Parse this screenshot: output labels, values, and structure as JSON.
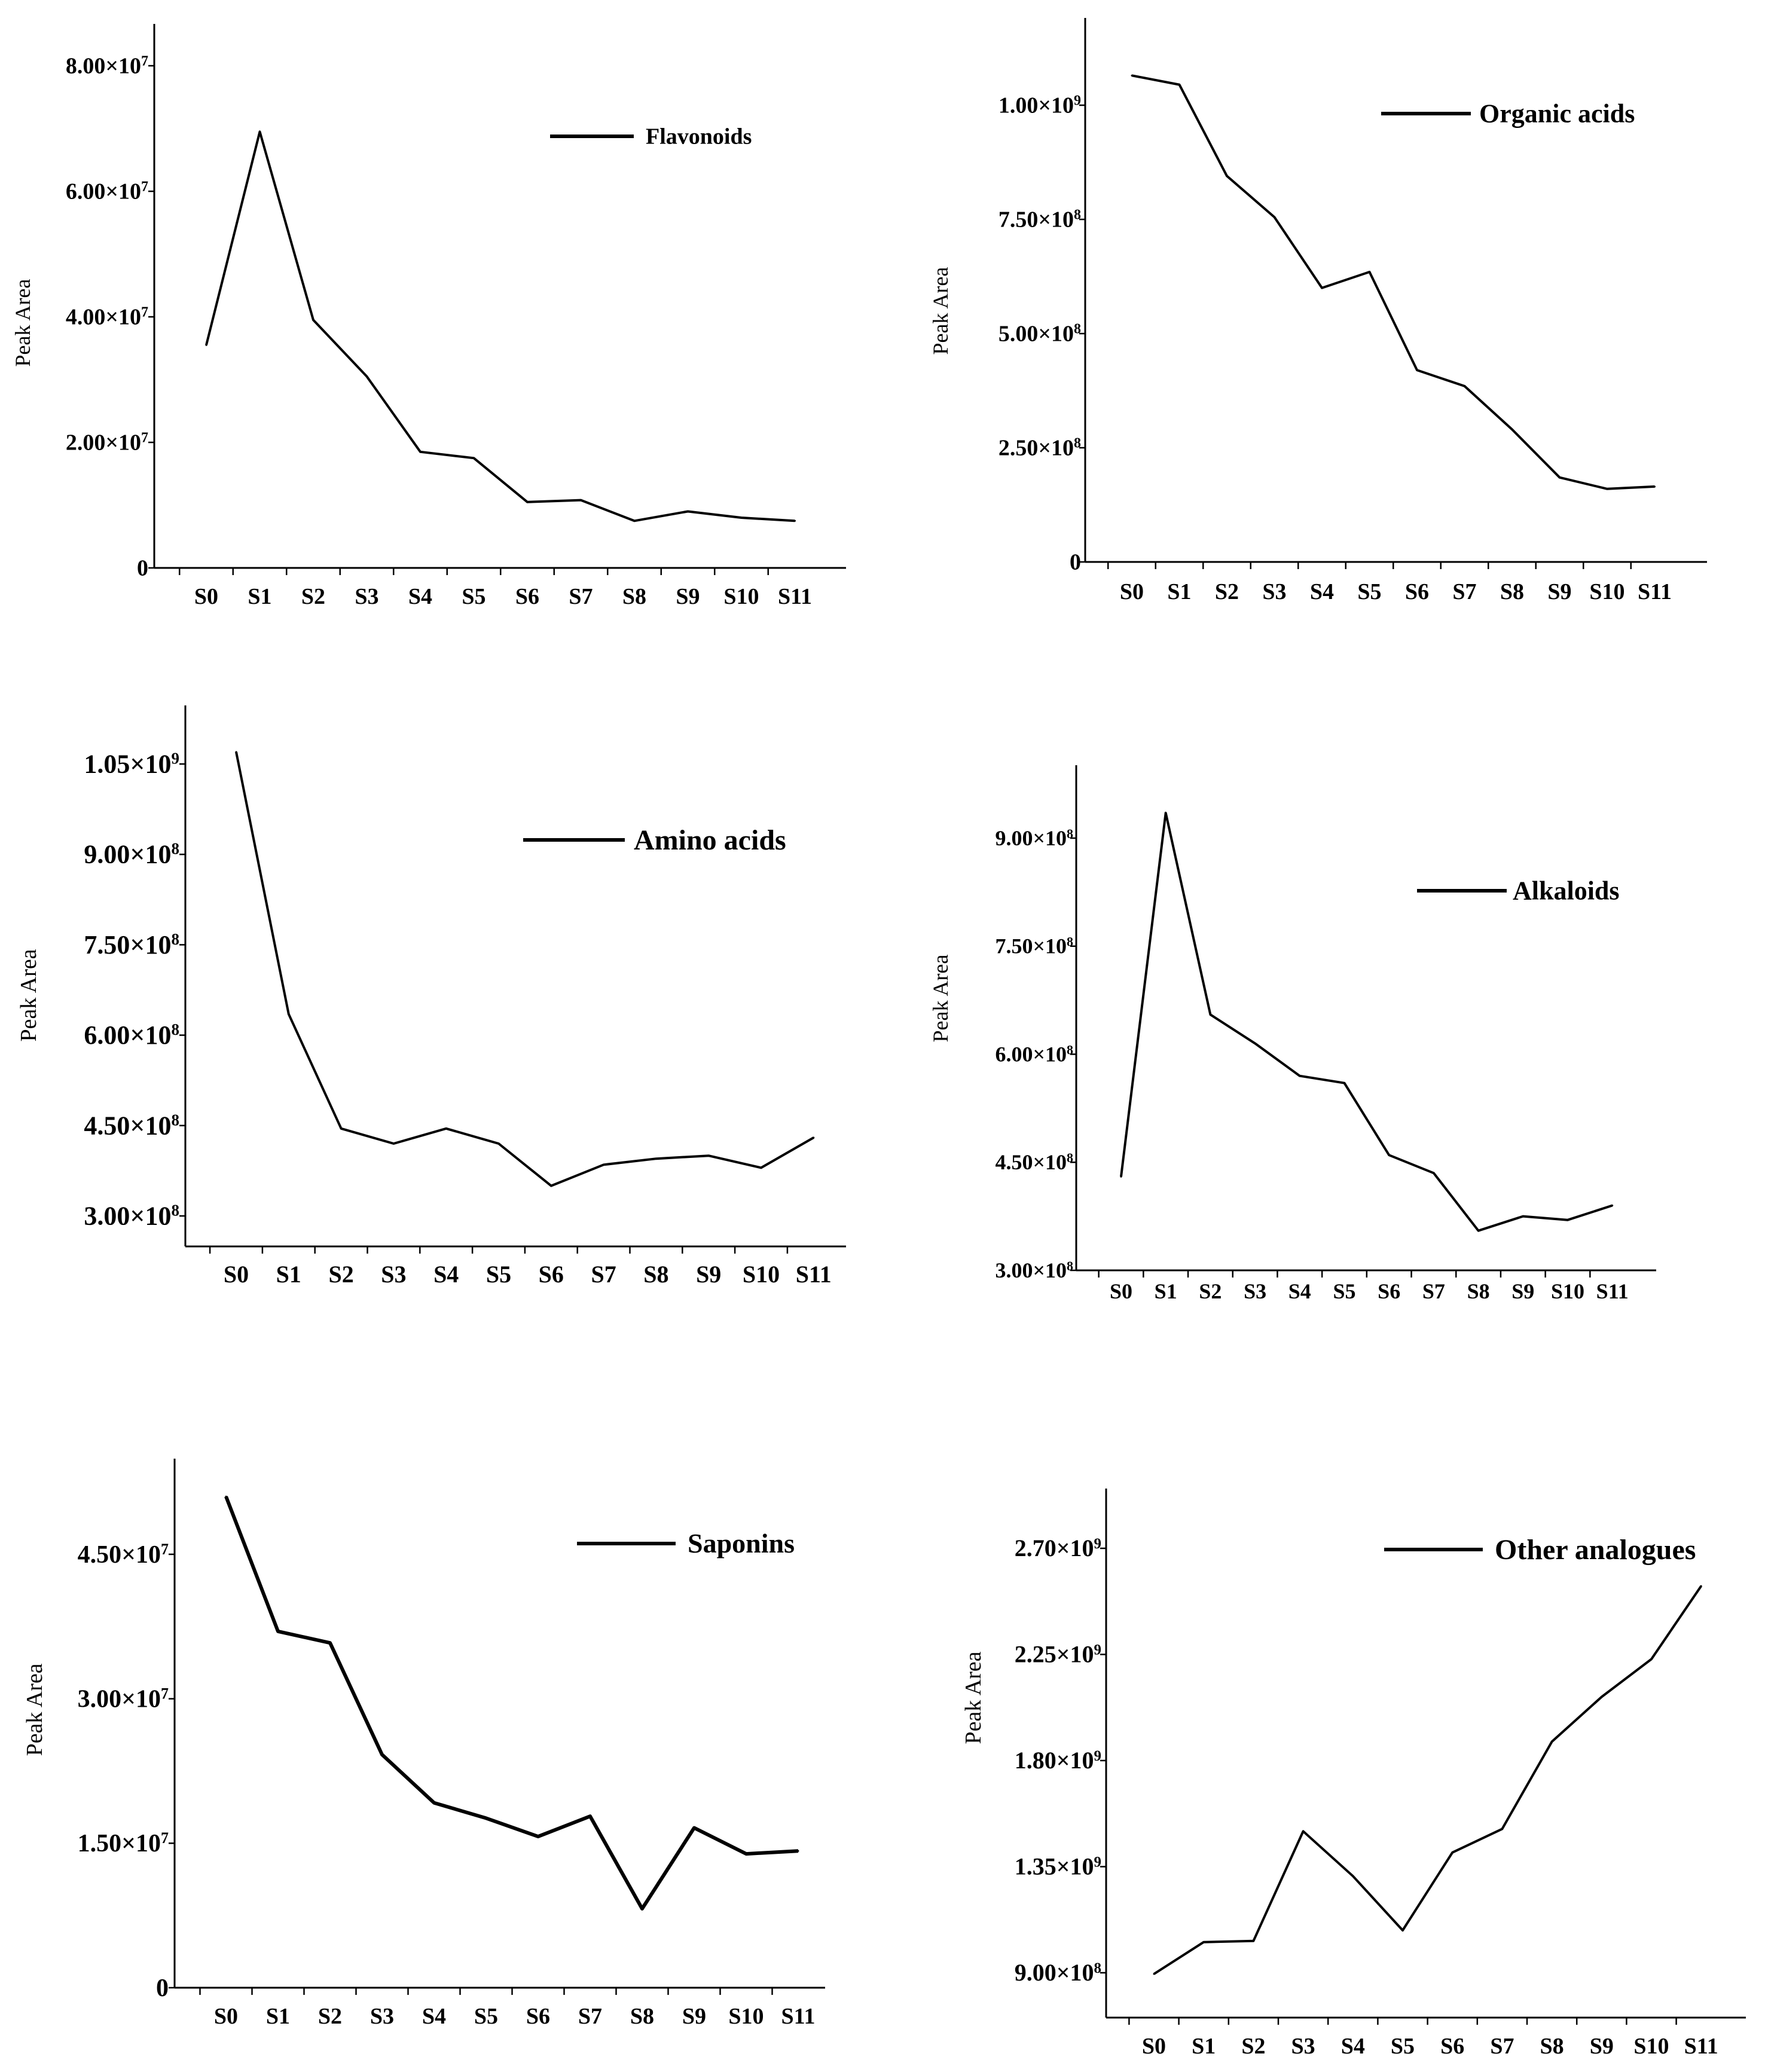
{
  "chart_data": [
    {
      "type": "line",
      "ylabel": "Peak Area",
      "legend": "Flavonoids",
      "legend_position": "top-right",
      "categories": [
        "S0",
        "S1",
        "S2",
        "S3",
        "S4",
        "S5",
        "S6",
        "S7",
        "S8",
        "S9",
        "S10",
        "S11"
      ],
      "ylim": [
        0,
        80000000
      ],
      "yticks": [
        {
          "value": 0,
          "mant": "0",
          "exp": ""
        },
        {
          "value": 20000000,
          "mant": "2.00×10",
          "exp": "7"
        },
        {
          "value": 40000000,
          "mant": "4.00×10",
          "exp": "7"
        },
        {
          "value": 60000000,
          "mant": "6.00×10",
          "exp": "7"
        },
        {
          "value": 80000000,
          "mant": "8.00×10",
          "exp": "7"
        }
      ],
      "series": [
        {
          "values": [
            35500000,
            69500000,
            39500000,
            30500000,
            18500000,
            17500000,
            10500000,
            10800000,
            7500000,
            9000000,
            8000000,
            7500000
          ]
        }
      ],
      "color": "#000000"
    },
    {
      "type": "line",
      "ylabel": "Peak Area",
      "legend": "Organic acids",
      "legend_position": "top-right",
      "categories": [
        "S0",
        "S1",
        "S2",
        "S3",
        "S4",
        "S5",
        "S6",
        "S7",
        "S8",
        "S9",
        "S10",
        "S11"
      ],
      "ylim": [
        0,
        1000000000
      ],
      "yticks": [
        {
          "value": 0,
          "mant": "0",
          "exp": ""
        },
        {
          "value": 250000000,
          "mant": "2.50×10",
          "exp": "8"
        },
        {
          "value": 500000000,
          "mant": "5.00×10",
          "exp": "8"
        },
        {
          "value": 750000000,
          "mant": "7.50×10",
          "exp": "8"
        },
        {
          "value": 1000000000,
          "mant": "1.00×10",
          "exp": "9"
        }
      ],
      "series": [
        {
          "values": [
            1065000000,
            1045000000,
            845000000,
            755000000,
            600000000,
            635000000,
            420000000,
            385000000,
            290000000,
            185000000,
            160000000,
            165000000
          ]
        }
      ],
      "color": "#000000"
    },
    {
      "type": "line",
      "ylabel": "Peak Area",
      "legend": "Amino acids",
      "legend_position": "top-right",
      "categories": [
        "S0",
        "S1",
        "S2",
        "S3",
        "S4",
        "S5",
        "S6",
        "S7",
        "S8",
        "S9",
        "S10",
        "S11"
      ],
      "ylim": [
        250000000,
        1100000000
      ],
      "yticks": [
        {
          "value": 300000000,
          "mant": "3.00×10",
          "exp": "8"
        },
        {
          "value": 450000000,
          "mant": "4.50×10",
          "exp": "8"
        },
        {
          "value": 600000000,
          "mant": "6.00×10",
          "exp": "8"
        },
        {
          "value": 750000000,
          "mant": "7.50×10",
          "exp": "8"
        },
        {
          "value": 900000000,
          "mant": "9.00×10",
          "exp": "8"
        },
        {
          "value": 1050000000,
          "mant": "1.05×10",
          "exp": "9"
        }
      ],
      "series": [
        {
          "values": [
            1070000000,
            635000000,
            445000000,
            420000000,
            445000000,
            420000000,
            350000000,
            385000000,
            395000000,
            400000000,
            380000000,
            430000000
          ]
        }
      ],
      "color": "#000000"
    },
    {
      "type": "line",
      "ylabel": "Peak Area",
      "legend": "Alkaloids",
      "legend_position": "top-right",
      "categories": [
        "S0",
        "S1",
        "S2",
        "S3",
        "S4",
        "S5",
        "S6",
        "S7",
        "S8",
        "S9",
        "S10",
        "S11"
      ],
      "ylim": [
        300000000,
        1000000000
      ],
      "yticks": [
        {
          "value": 300000000,
          "mant": "3.00×10",
          "exp": "8"
        },
        {
          "value": 450000000,
          "mant": "4.50×10",
          "exp": "8"
        },
        {
          "value": 600000000,
          "mant": "6.00×10",
          "exp": "8"
        },
        {
          "value": 750000000,
          "mant": "7.50×10",
          "exp": "8"
        },
        {
          "value": 900000000,
          "mant": "9.00×10",
          "exp": "8"
        }
      ],
      "series": [
        {
          "values": [
            430000000,
            935000000,
            655000000,
            615000000,
            570000000,
            560000000,
            460000000,
            435000000,
            355000000,
            375000000,
            370000000,
            390000000
          ]
        }
      ],
      "color": "#000000"
    },
    {
      "type": "line",
      "ylabel": "Peak Area",
      "legend": "Saponins",
      "legend_position": "top-right",
      "categories": [
        "S0",
        "S1",
        "S2",
        "S3",
        "S4",
        "S5",
        "S6",
        "S7",
        "S8",
        "S9",
        "S10",
        "S11"
      ],
      "ylim": [
        0,
        54000000
      ],
      "yticks": [
        {
          "value": 0,
          "mant": "0",
          "exp": ""
        },
        {
          "value": 15000000,
          "mant": "1.50×10",
          "exp": "7"
        },
        {
          "value": 30000000,
          "mant": "3.00×10",
          "exp": "7"
        },
        {
          "value": 45000000,
          "mant": "4.50×10",
          "exp": "7"
        }
      ],
      "series": [
        {
          "values": [
            51000000,
            37000000,
            35800000,
            24200000,
            19200000,
            17600000,
            15700000,
            17800000,
            8200000,
            16600000,
            13900000,
            14200000
          ]
        }
      ],
      "color": "#000000"
    },
    {
      "type": "line",
      "ylabel": "Peak Area",
      "legend": "Other analogues",
      "legend_position": "top-right",
      "categories": [
        "S0",
        "S1",
        "S2",
        "S3",
        "S4",
        "S5",
        "S6",
        "S7",
        "S8",
        "S9",
        "S10",
        "S11"
      ],
      "ylim": [
        700000000,
        2950000000
      ],
      "yticks": [
        {
          "value": 900000000,
          "mant": "9.00×10",
          "exp": "8"
        },
        {
          "value": 1350000000,
          "mant": "1.35×10",
          "exp": "9"
        },
        {
          "value": 1800000000,
          "mant": "1.80×10",
          "exp": "9"
        },
        {
          "value": 2250000000,
          "mant": "2.25×10",
          "exp": "9"
        },
        {
          "value": 2700000000,
          "mant": "2.70×10",
          "exp": "9"
        }
      ],
      "series": [
        {
          "values": [
            895000000,
            1030000000,
            1035000000,
            1500000000,
            1310000000,
            1080000000,
            1410000000,
            1510000000,
            1880000000,
            2070000000,
            2230000000,
            2540000000
          ]
        }
      ],
      "color": "#000000"
    }
  ]
}
